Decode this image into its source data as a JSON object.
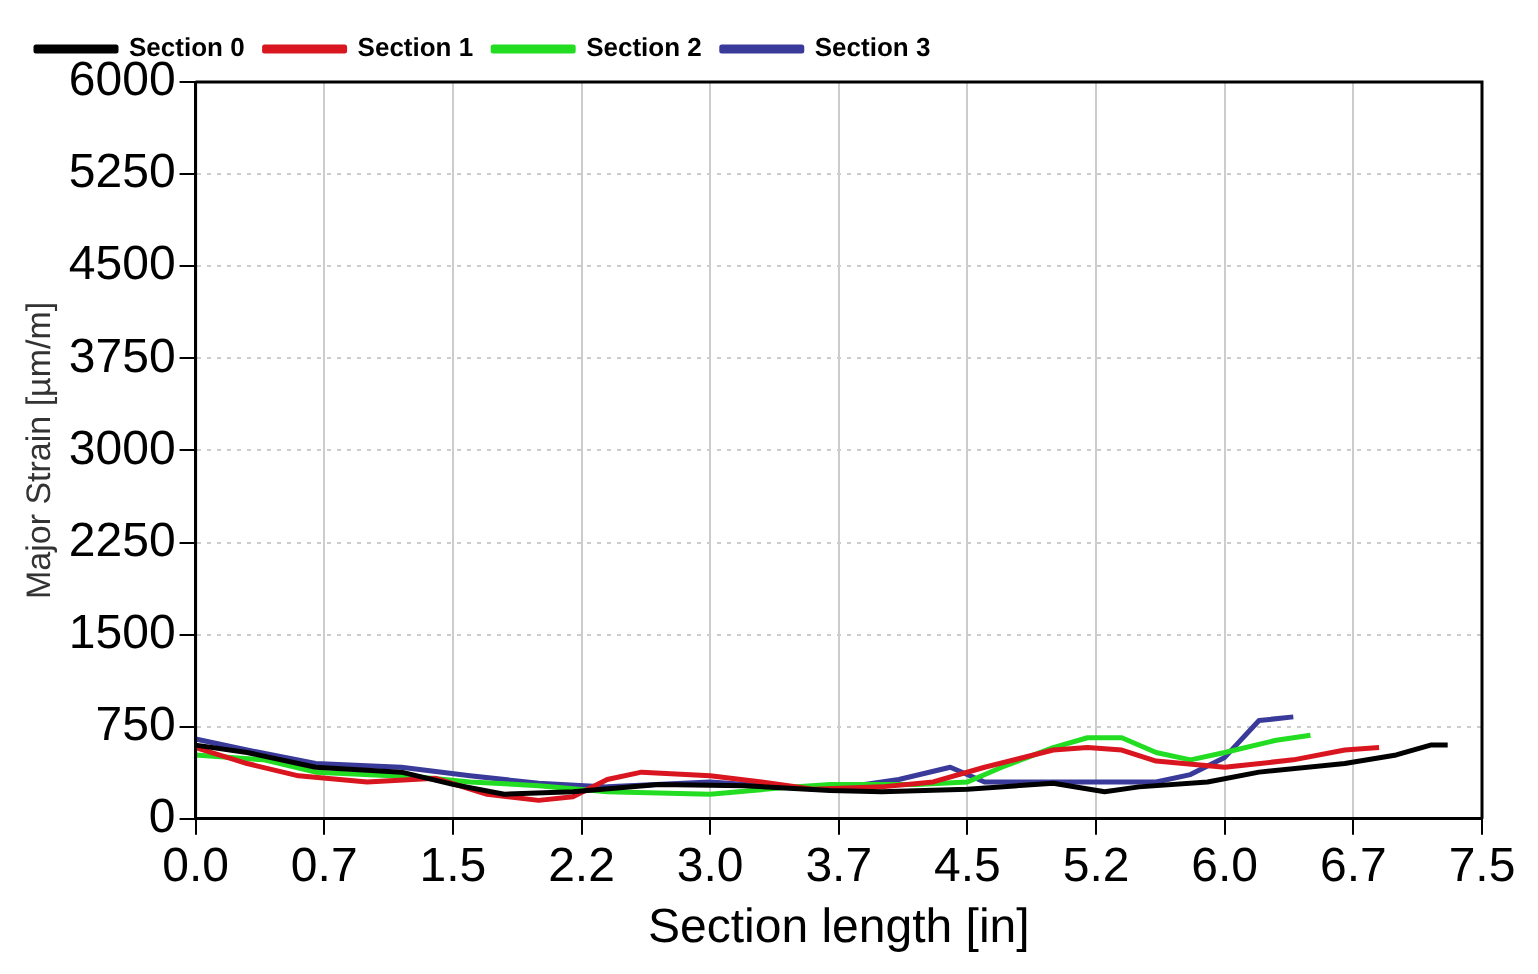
{
  "chart_data": {
    "type": "line",
    "xlabel": "Section length [in]",
    "ylabel": "Major Strain [µm/m]",
    "xlim": [
      0,
      7.5
    ],
    "xticks": [
      {
        "value": 0,
        "label": "0.0"
      },
      {
        "value": 0.75,
        "label": "0.7"
      },
      1.5,
      {
        "value": 2.25,
        "label": "2.2"
      },
      {
        "value": 3,
        "label": "3.0"
      },
      {
        "value": 3.75,
        "label": "3.7"
      },
      4.5,
      {
        "value": 5.25,
        "label": "5.2"
      },
      {
        "value": 6,
        "label": "6.0"
      },
      {
        "value": 6.75,
        "label": "6.7"
      },
      7.5
    ],
    "ylim": [
      0,
      6000
    ],
    "yticks": [
      0,
      750,
      1500,
      2250,
      3000,
      3750,
      4500,
      5250,
      6000
    ],
    "grid": true,
    "legend": "top left",
    "marker": "none",
    "line_style": "solid",
    "series": [
      {
        "name": "Section 0",
        "color": "#000000",
        "x": [
          0,
          0.3,
          0.7,
          1.2,
          1.5,
          1.8,
          2.2,
          2.7,
          3.2,
          3.7,
          4.0,
          4.5,
          5.0,
          5.3,
          5.5,
          5.9,
          6.2,
          6.7,
          7.0,
          7.2,
          7.3
        ],
        "values": [
          600,
          540,
          420,
          380,
          280,
          200,
          220,
          280,
          270,
          230,
          220,
          240,
          290,
          220,
          260,
          300,
          380,
          450,
          520,
          600,
          600
        ]
      },
      {
        "name": "Section 1",
        "color": "#d9151f",
        "x": [
          0,
          0.3,
          0.6,
          1.0,
          1.4,
          1.7,
          2.0,
          2.2,
          2.4,
          2.6,
          3.0,
          3.3,
          3.6,
          4.0,
          4.3,
          4.6,
          5.0,
          5.2,
          5.4,
          5.6,
          6.0,
          6.4,
          6.7,
          6.9
        ],
        "values": [
          580,
          450,
          350,
          300,
          330,
          200,
          150,
          180,
          320,
          380,
          350,
          300,
          240,
          260,
          300,
          420,
          560,
          580,
          560,
          470,
          420,
          480,
          560,
          580
        ]
      },
      {
        "name": "Section 2",
        "color": "#22dd22",
        "x": [
          0,
          0.4,
          0.7,
          1.3,
          1.6,
          2.0,
          2.4,
          3.0,
          3.4,
          3.7,
          4.2,
          4.5,
          4.7,
          5.0,
          5.2,
          5.4,
          5.6,
          5.8,
          6.0,
          6.3,
          6.5
        ],
        "values": [
          520,
          480,
          380,
          340,
          300,
          270,
          220,
          200,
          250,
          280,
          280,
          300,
          420,
          580,
          660,
          660,
          540,
          480,
          540,
          640,
          680
        ]
      },
      {
        "name": "Section 3",
        "color": "#3a3a9a",
        "x": [
          0,
          0.3,
          0.7,
          1.2,
          1.6,
          2.0,
          2.4,
          3.0,
          3.5,
          3.8,
          4.1,
          4.4,
          4.6,
          5.0,
          5.6,
          5.8,
          6.0,
          6.2,
          6.4
        ],
        "values": [
          650,
          560,
          450,
          420,
          350,
          290,
          260,
          300,
          250,
          260,
          320,
          420,
          300,
          300,
          300,
          360,
          500,
          800,
          830
        ]
      }
    ]
  }
}
